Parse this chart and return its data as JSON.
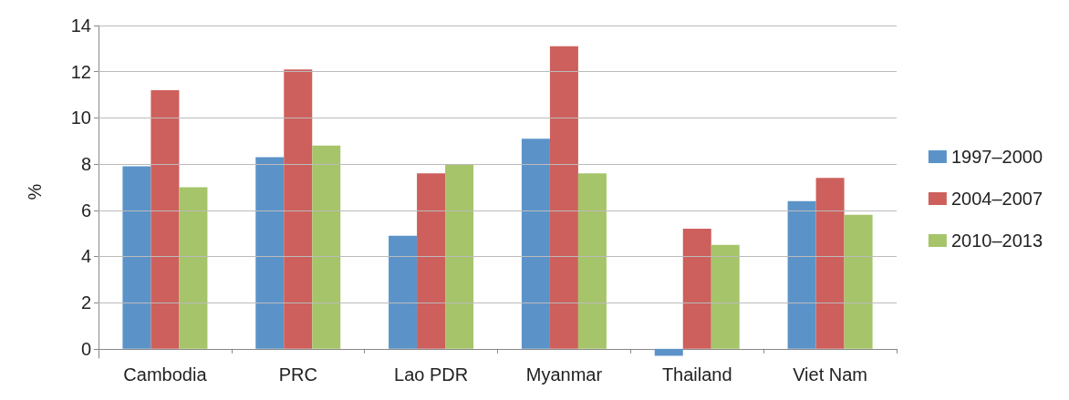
{
  "chart_data": {
    "type": "bar",
    "ylabel": "%",
    "categories": [
      "Cambodia",
      "PRC",
      "Lao PDR",
      "Myanmar",
      "Thailand",
      "Viet Nam"
    ],
    "series": [
      {
        "name": "1997–2000",
        "color": "#5b93c9",
        "values": [
          7.9,
          8.3,
          4.9,
          9.1,
          -0.3,
          6.4
        ]
      },
      {
        "name": "2004–2007",
        "color": "#cd605c",
        "values": [
          11.2,
          12.1,
          7.6,
          13.1,
          5.2,
          7.4
        ]
      },
      {
        "name": "2010–2013",
        "color": "#a6c46a",
        "values": [
          7.0,
          8.8,
          8.0,
          7.6,
          4.5,
          5.8
        ]
      }
    ],
    "ylim": [
      -0.4,
      14
    ],
    "yticks": [
      0,
      2,
      4,
      6,
      8,
      10,
      12,
      14
    ],
    "grid": "y",
    "legend": "right"
  }
}
